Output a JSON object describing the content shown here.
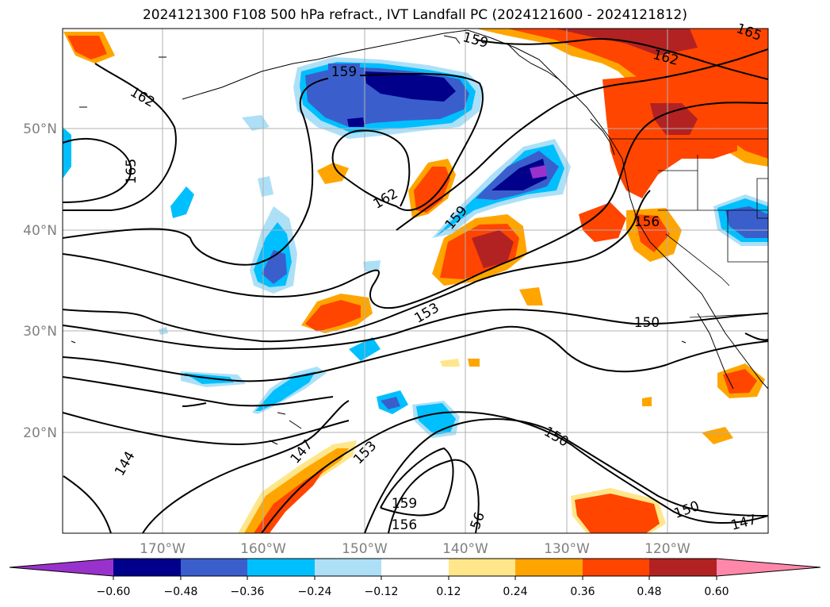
{
  "title": "2024121300 F108 500 hPa refract., IVT Landfall PC (2024121600 - 2024121812)",
  "lat_labels": [
    "50°N",
    "40°N",
    "30°N",
    "20°N"
  ],
  "lon_labels": [
    "170°W",
    "160°W",
    "150°W",
    "140°W",
    "130°W",
    "120°W"
  ],
  "contour_labels": [
    "159",
    "162",
    "165",
    "162",
    "159",
    "159",
    "153",
    "150",
    "147",
    "144",
    "153",
    "156",
    "150",
    "150",
    "147",
    "159",
    "156",
    "56",
    "165",
    "162"
  ],
  "colorbar": {
    "ticks": [
      "−0.60",
      "−0.48",
      "−0.36",
      "−0.24",
      "−0.12",
      "0.12",
      "0.24",
      "0.36",
      "0.48",
      "0.60"
    ],
    "colors": [
      "#9932CC",
      "#00008B",
      "#3A5FCD",
      "#00BFFF",
      "#ADE0F7",
      "#FFFFFF",
      "#FFE68A",
      "#FFA500",
      "#FF4500",
      "#B22222",
      "#FF88AA"
    ]
  }
}
